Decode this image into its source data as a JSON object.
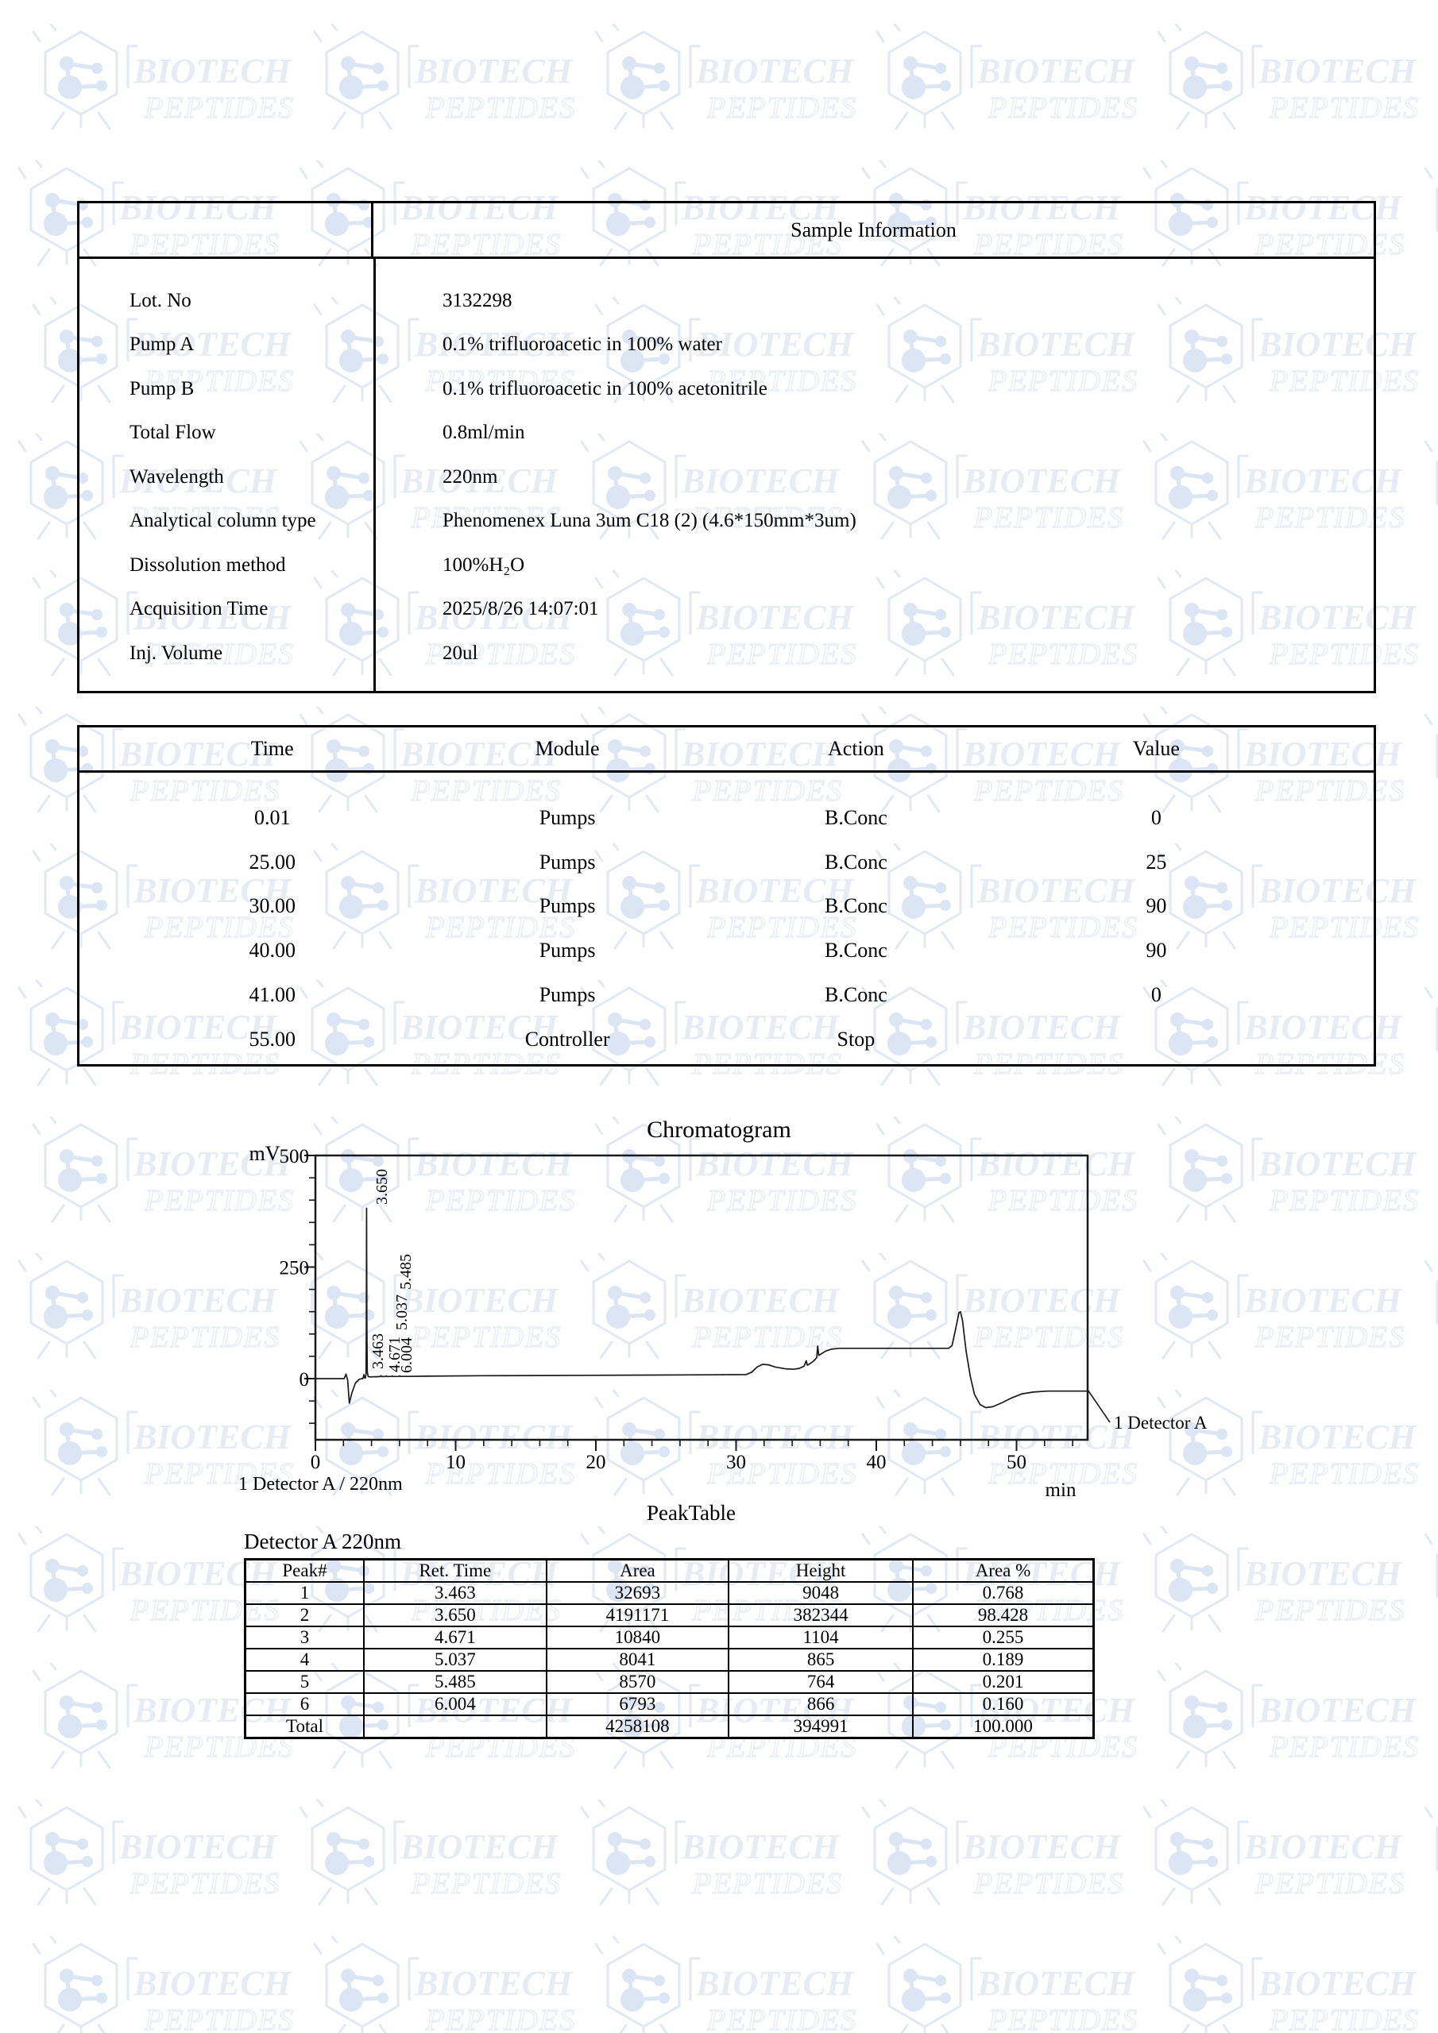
{
  "watermark": {
    "line1": "BIOTECH",
    "line2": "PEPTIDES"
  },
  "sample_info": {
    "title": "Sample Information",
    "rows": [
      {
        "label": "Lot. No",
        "value": "3132298"
      },
      {
        "label": "Pump A",
        "value": "0.1% trifluoroacetic in 100% water"
      },
      {
        "label": "Pump B",
        "value": "0.1% trifluoroacetic in 100% acetonitrile"
      },
      {
        "label": "Total Flow",
        "value": "0.8ml/min"
      },
      {
        "label": "Wavelength",
        "value": "220nm"
      },
      {
        "label": "Analytical column type",
        "value": "Phenomenex Luna 3um C18 (2) (4.6*150mm*3um)"
      },
      {
        "label": "Dissolution method",
        "value": "100%H₂O"
      },
      {
        "label": "Acquisition Time",
        "value": "2025/8/26 14:07:01"
      },
      {
        "label": "Inj. Volume",
        "value": "20ul"
      }
    ]
  },
  "program_table": {
    "headers": [
      "Time",
      "Module",
      "Action",
      "Value"
    ],
    "rows": [
      [
        "0.01",
        "Pumps",
        "B.Conc",
        "0"
      ],
      [
        "25.00",
        "Pumps",
        "B.Conc",
        "25"
      ],
      [
        "30.00",
        "Pumps",
        "B.Conc",
        "90"
      ],
      [
        "40.00",
        "Pumps",
        "B.Conc",
        "90"
      ],
      [
        "41.00",
        "Pumps",
        "B.Conc",
        "0"
      ],
      [
        "55.00",
        "Controller",
        "Stop",
        ""
      ]
    ]
  },
  "chart_data": {
    "type": "line",
    "title": "Chromatogram",
    "ylabel": "mV",
    "xlabel": "min",
    "xlim": [
      0,
      55.1
    ],
    "ylim": [
      -137,
      500
    ],
    "x_ticks": [
      0,
      10,
      20,
      30,
      40,
      50
    ],
    "x_minor_step": 2,
    "y_ticks": [
      0,
      250,
      500
    ],
    "y_minor_step": 50,
    "grid": false,
    "legend_below": "1 Detector A / 220nm",
    "detector_label": "1 Detector A",
    "peak_labels": [
      {
        "text": "3.650",
        "x": 487,
        "y": 1517
      },
      {
        "text": "5.485",
        "x": 517,
        "y": 1624
      },
      {
        "text": "5.037",
        "x": 512,
        "y": 1675
      },
      {
        "text": "3.463",
        "x": 482,
        "y": 1724
      },
      {
        "text": "4.671",
        "x": 503,
        "y": 1728
      },
      {
        "text": "6.004",
        "x": 518,
        "y": 1729
      }
    ],
    "trace": [
      [
        0,
        0
      ],
      [
        1.0,
        0
      ],
      [
        2.05,
        0
      ],
      [
        2.18,
        10
      ],
      [
        2.3,
        -3
      ],
      [
        2.42,
        -55
      ],
      [
        2.6,
        -32
      ],
      [
        2.85,
        -10
      ],
      [
        3.1,
        -2
      ],
      [
        3.3,
        0
      ],
      [
        3.38,
        0
      ],
      [
        3.42,
        4
      ],
      [
        3.463,
        9
      ],
      [
        3.5,
        2
      ],
      [
        3.56,
        1
      ],
      [
        3.61,
        10
      ],
      [
        3.63,
        120
      ],
      [
        3.65,
        382
      ],
      [
        3.67,
        120
      ],
      [
        3.7,
        15
      ],
      [
        3.76,
        5
      ],
      [
        3.85,
        4
      ],
      [
        4.3,
        4.3
      ],
      [
        4.62,
        4.7
      ],
      [
        4.671,
        6.5
      ],
      [
        4.73,
        4.6
      ],
      [
        4.99,
        4.8
      ],
      [
        5.037,
        6.2
      ],
      [
        5.1,
        4.7
      ],
      [
        5.44,
        4.9
      ],
      [
        5.485,
        6.0
      ],
      [
        5.54,
        4.8
      ],
      [
        5.96,
        5.0
      ],
      [
        6.004,
        6.3
      ],
      [
        6.06,
        4.9
      ],
      [
        6.6,
        5
      ],
      [
        8,
        5.5
      ],
      [
        12,
        6.5
      ],
      [
        16,
        7
      ],
      [
        20,
        7.5
      ],
      [
        24,
        8
      ],
      [
        28,
        8.5
      ],
      [
        30.7,
        9
      ],
      [
        31.1,
        14
      ],
      [
        31.5,
        26
      ],
      [
        31.9,
        32
      ],
      [
        32.3,
        31
      ],
      [
        32.8,
        26
      ],
      [
        33.5,
        22
      ],
      [
        34.1,
        21
      ],
      [
        34.5,
        23
      ],
      [
        34.85,
        28
      ],
      [
        35.0,
        40
      ],
      [
        35.08,
        30
      ],
      [
        35.3,
        34
      ],
      [
        35.55,
        40
      ],
      [
        35.75,
        47
      ],
      [
        35.82,
        73
      ],
      [
        35.9,
        52
      ],
      [
        36.1,
        56
      ],
      [
        36.4,
        62
      ],
      [
        36.8,
        66
      ],
      [
        37.4,
        68
      ],
      [
        38.5,
        68
      ],
      [
        41,
        68
      ],
      [
        44,
        68
      ],
      [
        45.15,
        68
      ],
      [
        45.4,
        74
      ],
      [
        45.65,
        110
      ],
      [
        45.9,
        148
      ],
      [
        46.0,
        150
      ],
      [
        46.15,
        130
      ],
      [
        46.4,
        62
      ],
      [
        46.7,
        5
      ],
      [
        47.0,
        -35
      ],
      [
        47.4,
        -58
      ],
      [
        47.8,
        -65
      ],
      [
        48.3,
        -63
      ],
      [
        48.9,
        -55
      ],
      [
        49.6,
        -44
      ],
      [
        50.4,
        -34
      ],
      [
        51.2,
        -30
      ],
      [
        52.2,
        -28
      ],
      [
        53.5,
        -28
      ],
      [
        55.05,
        -28
      ]
    ]
  },
  "peak_table": {
    "title": "PeakTable",
    "subtitle": "Detector A 220nm",
    "headers": [
      "Peak#",
      "Ret. Time",
      "Area",
      "Height",
      "Area %"
    ],
    "rows": [
      [
        "1",
        "3.463",
        "32693",
        "9048",
        "0.768"
      ],
      [
        "2",
        "3.650",
        "4191171",
        "382344",
        "98.428"
      ],
      [
        "3",
        "4.671",
        "10840",
        "1104",
        "0.255"
      ],
      [
        "4",
        "5.037",
        "8041",
        "865",
        "0.189"
      ],
      [
        "5",
        "5.485",
        "8570",
        "764",
        "0.201"
      ],
      [
        "6",
        "6.004",
        "6793",
        "866",
        "0.160"
      ],
      [
        "Total",
        "",
        "4258108",
        "394991",
        "100.000"
      ]
    ]
  }
}
